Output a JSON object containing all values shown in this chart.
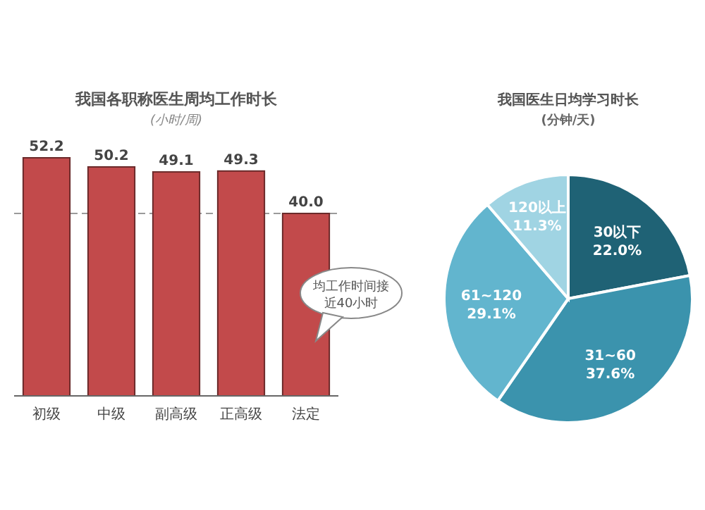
{
  "chart_data": [
    {
      "type": "bar",
      "title": "我国各职称医生周均工作时长",
      "subtitle": "(小时/周)",
      "categories": [
        "初级",
        "中级",
        "副高级",
        "正高级",
        "法定"
      ],
      "values": [
        52.2,
        50.2,
        49.1,
        49.3,
        40.0
      ],
      "value_labels": [
        "52.2",
        "50.2",
        "49.1",
        "49.3",
        "40.0"
      ],
      "color": "#c24a4b",
      "ref_lines": [
        {
          "axis": "y",
          "value": 40,
          "color": "#9a9a9a",
          "line_style": "dashed"
        }
      ],
      "annotations": [
        "均工作时间接近40小时"
      ]
    },
    {
      "type": "pie",
      "title": "我国医生日均学习时长",
      "subtitle": "(分钟/天)",
      "categories": [
        "30以下",
        "31~60",
        "61~120",
        "120以上"
      ],
      "values": [
        22.0,
        37.6,
        29.1,
        11.3
      ],
      "value_labels": [
        "22.0%",
        "37.6%",
        "29.1%",
        "11.3%"
      ],
      "colors": [
        "#1f6275",
        "#3b93ad",
        "#62b5ce",
        "#a0d4e3"
      ]
    }
  ]
}
